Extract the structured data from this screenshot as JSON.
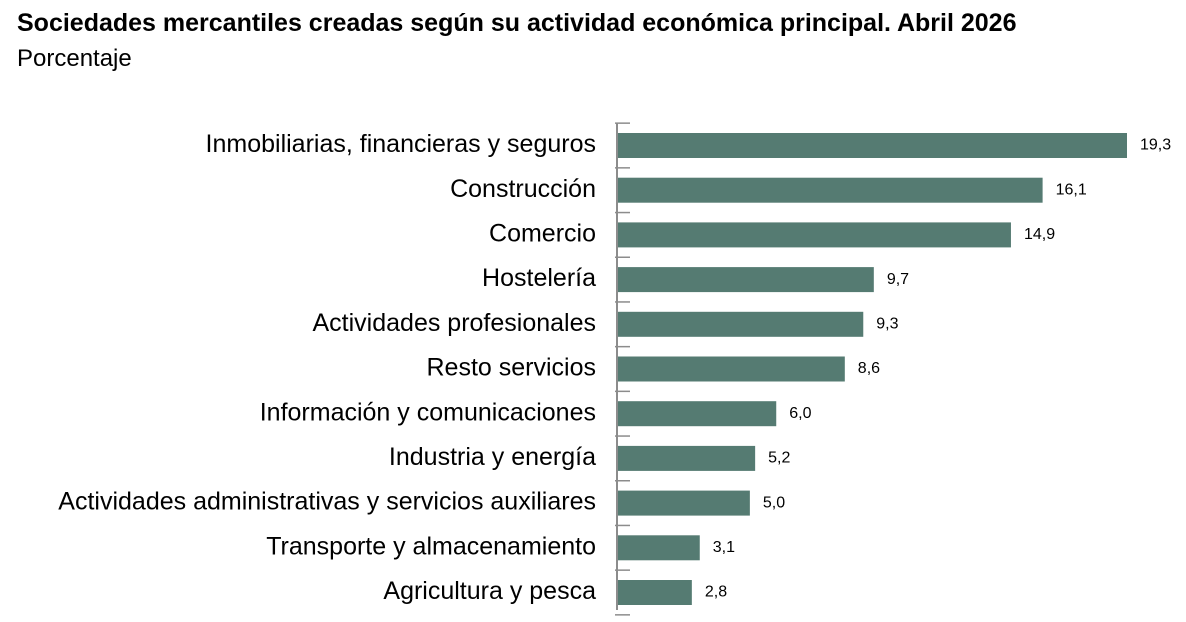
{
  "chart_data": {
    "type": "bar",
    "orientation": "horizontal",
    "title": "Sociedades mercantiles creadas según su actividad económica principal. Abril 2026",
    "subtitle": "Porcentaje",
    "categories": [
      "Inmobiliarias, financieras y seguros",
      "Construcción",
      "Comercio",
      "Hostelería",
      "Actividades profesionales",
      "Resto servicios",
      "Información y comunicaciones",
      "Industria y energía",
      "Actividades administrativas y servicios auxiliares",
      "Transporte y almacenamiento",
      "Agricultura y pesca"
    ],
    "values": [
      19.3,
      16.1,
      14.9,
      9.7,
      9.3,
      8.6,
      6.0,
      5.2,
      5.0,
      3.1,
      2.8
    ],
    "value_labels": [
      "19,3",
      "16,1",
      "14,9",
      "9,7",
      "9,3",
      "8,6",
      "6,0",
      "5,2",
      "5,0",
      "3,1",
      "2,8"
    ],
    "bar_color": "#557b72",
    "axis_color": "#8c8c8c",
    "xlim": [
      0,
      19.3
    ],
    "grid": false,
    "legend": "none"
  }
}
